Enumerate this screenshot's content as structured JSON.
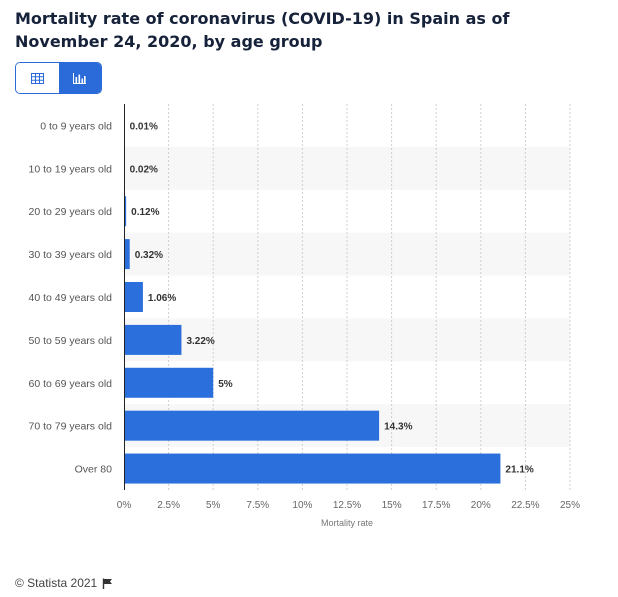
{
  "title": "Mortality rate of coronavirus (COVID-19) in Spain as of November 24, 2020, by age group",
  "footer": {
    "copyright": "© Statista 2021"
  },
  "icons": {
    "table_view": "table-icon",
    "chart_view": "bar-chart-icon",
    "flag": "flag-icon"
  },
  "colors": {
    "bar": "#2a6fdb",
    "accent": "#2a6bd9"
  },
  "chart_data": {
    "type": "bar",
    "orientation": "horizontal",
    "categories": [
      "0 to 9 years old",
      "10 to 19 years old",
      "20 to 29 years old",
      "30 to 39 years old",
      "40 to 49 years old",
      "50 to 59 years old",
      "60 to 69 years old",
      "70 to 79 years old",
      "Over 80"
    ],
    "values": [
      0.01,
      0.02,
      0.12,
      0.32,
      1.06,
      3.22,
      5,
      14.3,
      21.1
    ],
    "value_labels": [
      "0.01%",
      "0.02%",
      "0.12%",
      "0.32%",
      "1.06%",
      "3.22%",
      "5%",
      "14.3%",
      "21.1%"
    ],
    "xlabel": "Mortality rate",
    "ylabel": "",
    "xlim": [
      0,
      25
    ],
    "xticks": [
      0,
      2.5,
      5,
      7.5,
      10,
      12.5,
      15,
      17.5,
      20,
      22.5,
      25
    ],
    "xtick_labels": [
      "0%",
      "2.5%",
      "5%",
      "7.5%",
      "10%",
      "12.5%",
      "15%",
      "17.5%",
      "20%",
      "22.5%",
      "25%"
    ],
    "grid": true
  }
}
